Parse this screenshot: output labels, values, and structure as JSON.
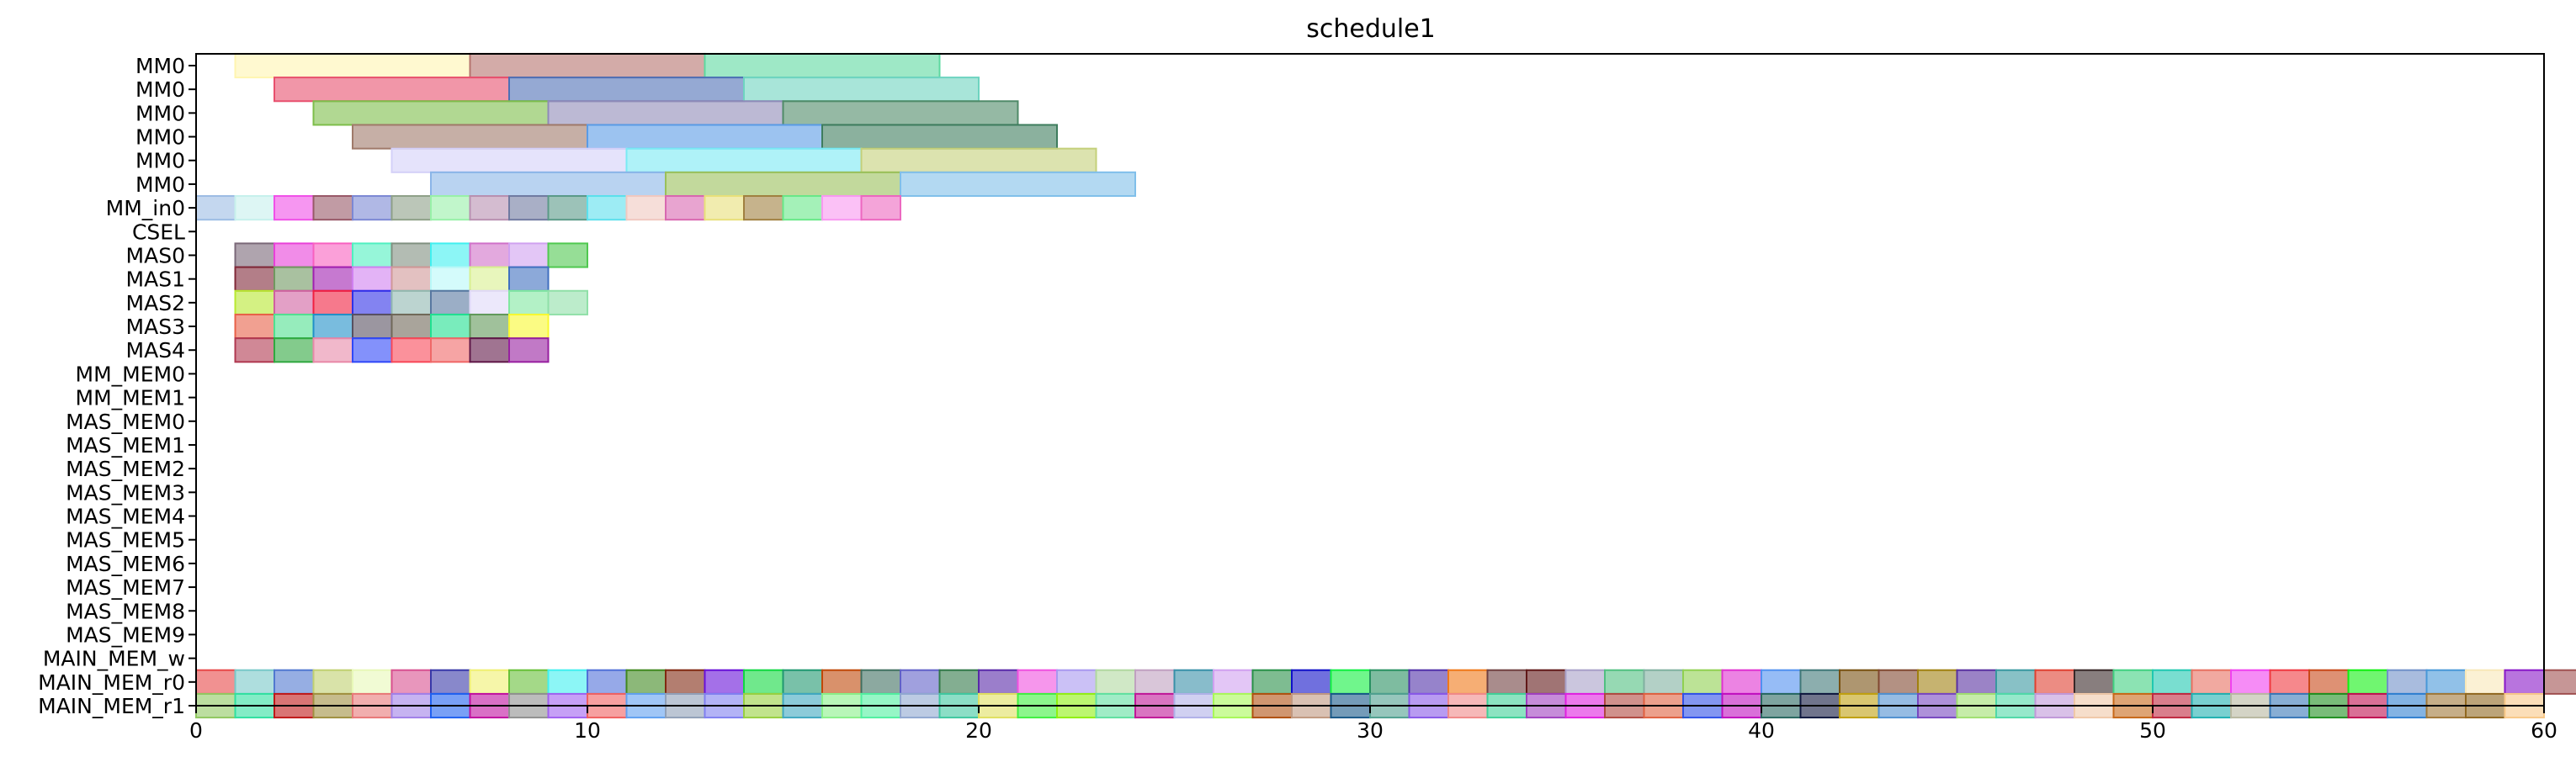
{
  "chart_data": {
    "type": "gantt",
    "title": "schedule1",
    "xlabel": "",
    "ylabel": "",
    "xlim": [
      0,
      60
    ],
    "xticks": [
      0,
      10,
      20,
      30,
      40,
      50,
      60
    ],
    "grid": false,
    "rows": [
      "MM0",
      "MM0",
      "MM0",
      "MM0",
      "MM0",
      "MM0",
      "MM_in0",
      "CSEL",
      "MAS0",
      "MAS1",
      "MAS2",
      "MAS3",
      "MAS4",
      "MM_MEM0",
      "MM_MEM1",
      "MAS_MEM0",
      "MAS_MEM1",
      "MAS_MEM2",
      "MAS_MEM3",
      "MAS_MEM4",
      "MAS_MEM5",
      "MAS_MEM6",
      "MAS_MEM7",
      "MAS_MEM8",
      "MAS_MEM9",
      "MAIN_MEM_w",
      "MAIN_MEM_r0",
      "MAIN_MEM_r1"
    ],
    "tasks": [
      {
        "row": 0,
        "start": 1,
        "end": 7,
        "color": "#FFF5B0"
      },
      {
        "row": 0,
        "start": 7,
        "end": 13,
        "color": "#B5736E"
      },
      {
        "row": 0,
        "start": 13,
        "end": 19,
        "color": "#5ED8A0"
      },
      {
        "row": 1,
        "start": 2,
        "end": 8,
        "color": "#E8506E"
      },
      {
        "row": 1,
        "start": 8,
        "end": 14,
        "color": "#4E6FB5"
      },
      {
        "row": 1,
        "start": 14,
        "end": 20,
        "color": "#6ED4C0"
      },
      {
        "row": 2,
        "start": 3,
        "end": 9,
        "color": "#7DBE4A"
      },
      {
        "row": 2,
        "start": 9,
        "end": 15,
        "color": "#8F8AB8"
      },
      {
        "row": 2,
        "start": 15,
        "end": 21,
        "color": "#4F8A68"
      },
      {
        "row": 3,
        "start": 4,
        "end": 10,
        "color": "#A07A6A"
      },
      {
        "row": 3,
        "start": 10,
        "end": 16,
        "color": "#5A9BE6"
      },
      {
        "row": 3,
        "start": 16,
        "end": 22,
        "color": "#3E7D5E"
      },
      {
        "row": 4,
        "start": 5,
        "end": 11,
        "color": "#D4D0F8"
      },
      {
        "row": 4,
        "start": 11,
        "end": 17,
        "color": "#7AEAF4"
      },
      {
        "row": 4,
        "start": 17,
        "end": 23,
        "color": "#C4D07A"
      },
      {
        "row": 5,
        "start": 6,
        "end": 12,
        "color": "#8AB5E8"
      },
      {
        "row": 5,
        "start": 12,
        "end": 18,
        "color": "#9AC05A"
      },
      {
        "row": 5,
        "start": 18,
        "end": 24,
        "color": "#80BFEA"
      },
      {
        "row": 6,
        "start": 0,
        "end": 1,
        "color": "#9CBCE4"
      },
      {
        "row": 6,
        "start": 1,
        "end": 2,
        "color": "#C6F0EC"
      },
      {
        "row": 6,
        "start": 2,
        "end": 3,
        "color": "#F050E8"
      },
      {
        "row": 6,
        "start": 3,
        "end": 4,
        "color": "#985868"
      },
      {
        "row": 6,
        "start": 4,
        "end": 5,
        "color": "#7C88D4"
      },
      {
        "row": 6,
        "start": 5,
        "end": 6,
        "color": "#8EA088"
      },
      {
        "row": 6,
        "start": 6,
        "end": 7,
        "color": "#98F0A8"
      },
      {
        "row": 6,
        "start": 7,
        "end": 8,
        "color": "#B890B0"
      },
      {
        "row": 6,
        "start": 8,
        "end": 9,
        "color": "#707AA0"
      },
      {
        "row": 6,
        "start": 9,
        "end": 10,
        "color": "#5A9A88"
      },
      {
        "row": 6,
        "start": 10,
        "end": 11,
        "color": "#5CE0EC"
      },
      {
        "row": 6,
        "start": 11,
        "end": 12,
        "color": "#F0C8C0"
      },
      {
        "row": 6,
        "start": 12,
        "end": 13,
        "color": "#D868B0"
      },
      {
        "row": 6,
        "start": 13,
        "end": 14,
        "color": "#E8E07A"
      },
      {
        "row": 6,
        "start": 14,
        "end": 15,
        "color": "#A08040"
      },
      {
        "row": 6,
        "start": 15,
        "end": 16,
        "color": "#68E888"
      },
      {
        "row": 6,
        "start": 16,
        "end": 17,
        "color": "#F898F0"
      },
      {
        "row": 6,
        "start": 17,
        "end": 18,
        "color": "#EC68C0"
      },
      {
        "row": 8,
        "start": 1,
        "end": 2,
        "color": "#7A6878"
      },
      {
        "row": 8,
        "start": 2,
        "end": 3,
        "color": "#E840D8"
      },
      {
        "row": 8,
        "start": 3,
        "end": 4,
        "color": "#F860C0"
      },
      {
        "row": 8,
        "start": 4,
        "end": 5,
        "color": "#50F0C0"
      },
      {
        "row": 8,
        "start": 5,
        "end": 6,
        "color": "#809080"
      },
      {
        "row": 8,
        "start": 6,
        "end": 7,
        "color": "#40F0F0"
      },
      {
        "row": 8,
        "start": 7,
        "end": 8,
        "color": "#D070C8"
      },
      {
        "row": 8,
        "start": 8,
        "end": 9,
        "color": "#D0A0F0"
      },
      {
        "row": 8,
        "start": 9,
        "end": 10,
        "color": "#50C850"
      },
      {
        "row": 9,
        "start": 1,
        "end": 2,
        "color": "#802838"
      },
      {
        "row": 9,
        "start": 2,
        "end": 3,
        "color": "#709860"
      },
      {
        "row": 9,
        "start": 3,
        "end": 4,
        "color": "#A020B0"
      },
      {
        "row": 9,
        "start": 4,
        "end": 5,
        "color": "#D080F0"
      },
      {
        "row": 9,
        "start": 5,
        "end": 6,
        "color": "#D09898"
      },
      {
        "row": 9,
        "start": 6,
        "end": 7,
        "color": "#B8F8F8"
      },
      {
        "row": 9,
        "start": 7,
        "end": 8,
        "color": "#D8F090"
      },
      {
        "row": 9,
        "start": 8,
        "end": 9,
        "color": "#4070C0"
      },
      {
        "row": 10,
        "start": 1,
        "end": 2,
        "color": "#B8E830"
      },
      {
        "row": 10,
        "start": 2,
        "end": 3,
        "color": "#D060A0"
      },
      {
        "row": 10,
        "start": 3,
        "end": 4,
        "color": "#F02040"
      },
      {
        "row": 10,
        "start": 4,
        "end": 5,
        "color": "#3030E8"
      },
      {
        "row": 10,
        "start": 5,
        "end": 6,
        "color": "#90B8B0"
      },
      {
        "row": 10,
        "start": 6,
        "end": 7,
        "color": "#5878A0"
      },
      {
        "row": 10,
        "start": 7,
        "end": 8,
        "color": "#E0D8F8"
      },
      {
        "row": 10,
        "start": 8,
        "end": 9,
        "color": "#80E8A0"
      },
      {
        "row": 10,
        "start": 9,
        "end": 10,
        "color": "#90E0A8"
      },
      {
        "row": 11,
        "start": 1,
        "end": 2,
        "color": "#E86048"
      },
      {
        "row": 11,
        "start": 2,
        "end": 3,
        "color": "#50E090"
      },
      {
        "row": 11,
        "start": 3,
        "end": 4,
        "color": "#2090C8"
      },
      {
        "row": 11,
        "start": 4,
        "end": 5,
        "color": "#585060"
      },
      {
        "row": 11,
        "start": 5,
        "end": 6,
        "color": "#706858"
      },
      {
        "row": 11,
        "start": 6,
        "end": 7,
        "color": "#20E090"
      },
      {
        "row": 11,
        "start": 7,
        "end": 8,
        "color": "#609858"
      },
      {
        "row": 11,
        "start": 8,
        "end": 9,
        "color": "#F8F830"
      },
      {
        "row": 12,
        "start": 1,
        "end": 2,
        "color": "#B03850"
      },
      {
        "row": 12,
        "start": 2,
        "end": 3,
        "color": "#30A840"
      },
      {
        "row": 12,
        "start": 3,
        "end": 4,
        "color": "#E888A8"
      },
      {
        "row": 12,
        "start": 4,
        "end": 5,
        "color": "#3048F8"
      },
      {
        "row": 12,
        "start": 5,
        "end": 6,
        "color": "#F84858"
      },
      {
        "row": 12,
        "start": 6,
        "end": 7,
        "color": "#F06868"
      },
      {
        "row": 12,
        "start": 7,
        "end": 8,
        "color": "#601848"
      },
      {
        "row": 12,
        "start": 8,
        "end": 9,
        "color": "#9820A0"
      }
    ],
    "main_mem_r0_colors": [
      "#E84848",
      "#78C8C8",
      "#5078D0",
      "#C0D070",
      "#E8F8B8",
      "#D85090",
      "#3838A8",
      "#F0F070",
      "#68C038",
      "#40F0F0",
      "#5070D8",
      "#408820",
      "#802810",
      "#6810D8",
      "#10D840",
      "#209870",
      "#C04808",
      "#407060",
      "#6060C8",
      "#307848",
      "#5828A8",
      "#F050E0",
      "#A898F0",
      "#B0D8A0",
      "#C0A0C0",
      "#3890A8",
      "#D0A0F0",
      "#289048",
      "#1010C8",
      "#10F040",
      "#289060",
      "#5030A8",
      "#F07818",
      "#704040",
      "#601818",
      "#A8A0C8",
      "#50C080",
      "#80B0A0",
      "#90D050",
      "#E030D0",
      "#5090F0",
      "#407878",
      "#785010",
      "#804830",
      "#A08010",
      "#5830A0",
      "#3898A0",
      "#E04030",
      "#382828",
      "#40D080",
      "#20C8B0",
      "#E87060",
      "#F040F0",
      "#F03840",
      "#C84818",
      "#10F010",
      "#7090C8",
      "#4898D8",
      "#F8E8B8",
      "#8818C8",
      "#A05050"
    ],
    "main_mem_r1_colors": [
      "#90C860",
      "#30E0A0",
      "#C01818",
      "#A09040",
      "#E87878",
      "#A080E8",
      "#2060F0",
      "#C010A0",
      "#909090",
      "#A060F0",
      "#F06060",
      "#60A0F0",
      "#90A0B8",
      "#8080F0",
      "#98D040",
      "#40A8C0",
      "#88F088",
      "#50F0A0",
      "#90A8D0",
      "#40C8A0",
      "#E0E060",
      "#40F040",
      "#90F010",
      "#60E0A0",
      "#C01898",
      "#B0B0E8",
      "#A8F858",
      "#B05010",
      "#C09880",
      "#185888",
      "#50A090",
      "#8858E8",
      "#F08888",
      "#40D098",
      "#A040C0",
      "#E020E0",
      "#B04840",
      "#E06040",
      "#3050E8",
      "#C010C0",
      "#286860",
      "#101840",
      "#C0A010",
      "#5090D0",
      "#7848C0",
      "#A0E070",
      "#50D8A8",
      "#C098D8",
      "#F0C8A8",
      "#C86818",
      "#C02840",
      "#20B0B0",
      "#B8B8A0",
      "#3878B8",
      "#209020",
      "#C01050",
      "#3080D0",
      "#A07838",
      "#906820",
      "#F8C888"
    ]
  }
}
